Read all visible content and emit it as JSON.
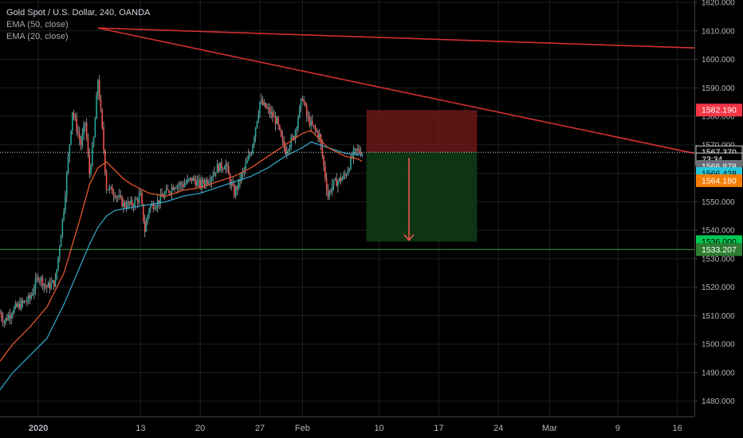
{
  "legend": {
    "symbol": "Gold Spot / U.S. Dollar, 240, OANDA",
    "ema50": "EMA (50, close)",
    "ema20": "EMA (20, close)"
  },
  "colors": {
    "background": "#000000",
    "grid": "#1c1f26",
    "up_candle": "#26a69a",
    "down_candle": "#ef5350",
    "ema20": "#e2552a",
    "ema50": "#2fa3c4",
    "trendline": "#d32f2f",
    "support_line": "#2e7d32",
    "stop_zone": "#7a1b1b",
    "target_zone": "#0f3d16"
  },
  "chart_data": {
    "type": "candlestick",
    "symbol": "Gold Spot / U.S. Dollar",
    "timeframe": "240",
    "source": "OANDA",
    "y_axis": {
      "range": [
        1476,
        1620
      ],
      "ticks": [
        "1620.000",
        "1610.000",
        "1600.000",
        "1590.000",
        "1580.000",
        "1570.000",
        "1560.000",
        "1550.000",
        "1540.000",
        "1530.000",
        "1520.000",
        "1510.000",
        "1500.000",
        "1490.000",
        "1480.000"
      ]
    },
    "x_axis": {
      "ticks": [
        {
          "label": "2020",
          "t": 1,
          "bold": true
        },
        {
          "label": "13",
          "t": 13
        },
        {
          "label": "20",
          "t": 20
        },
        {
          "label": "27",
          "t": 27
        },
        {
          "label": "Feb",
          "t": 32
        },
        {
          "label": "10",
          "t": 41
        },
        {
          "label": "17",
          "t": 48
        },
        {
          "label": "24",
          "t": 55
        },
        {
          "label": "Mar",
          "t": 61
        },
        {
          "label": "9",
          "t": 69
        },
        {
          "label": "16",
          "t": 76
        }
      ],
      "visible_range_days": [
        -3.5,
        78
      ]
    },
    "price_path": [
      [
        -3.5,
        1511
      ],
      [
        -3,
        1508
      ],
      [
        -2,
        1512
      ],
      [
        -1,
        1514
      ],
      [
        0,
        1516
      ],
      [
        1,
        1524
      ],
      [
        2,
        1520
      ],
      [
        3,
        1522
      ],
      [
        4,
        1548
      ],
      [
        5,
        1582
      ],
      [
        6,
        1570
      ],
      [
        6.5,
        1578
      ],
      [
        7,
        1560
      ],
      [
        7.5,
        1572
      ],
      [
        8,
        1593
      ],
      [
        8.5,
        1575
      ],
      [
        9,
        1555
      ],
      [
        10,
        1553
      ],
      [
        11,
        1549
      ],
      [
        12,
        1549
      ],
      [
        13,
        1552
      ],
      [
        13.5,
        1540
      ],
      [
        14,
        1548
      ],
      [
        15,
        1550
      ],
      [
        16,
        1553
      ],
      [
        17,
        1556
      ],
      [
        18,
        1556
      ],
      [
        19,
        1558
      ],
      [
        20,
        1556
      ],
      [
        21,
        1558
      ],
      [
        22,
        1562
      ],
      [
        23,
        1563
      ],
      [
        23.5,
        1557
      ],
      [
        24,
        1553
      ],
      [
        25,
        1560
      ],
      [
        26,
        1568
      ],
      [
        27,
        1585
      ],
      [
        28,
        1582
      ],
      [
        29,
        1578
      ],
      [
        29.5,
        1572
      ],
      [
        30,
        1568
      ],
      [
        31,
        1573
      ],
      [
        32,
        1587
      ],
      [
        32.5,
        1580
      ],
      [
        33,
        1577
      ],
      [
        34,
        1573
      ],
      [
        35,
        1552
      ],
      [
        35.5,
        1556
      ],
      [
        36,
        1557
      ],
      [
        37,
        1559
      ],
      [
        38,
        1567
      ],
      [
        38.5,
        1568
      ],
      [
        39,
        1567.4
      ]
    ],
    "ema20": [
      [
        -3.5,
        1494
      ],
      [
        -2,
        1500
      ],
      [
        0,
        1506
      ],
      [
        2,
        1513
      ],
      [
        4,
        1525
      ],
      [
        6,
        1545
      ],
      [
        7,
        1556
      ],
      [
        8,
        1562
      ],
      [
        9,
        1564
      ],
      [
        10,
        1561
      ],
      [
        11,
        1558
      ],
      [
        12,
        1556
      ],
      [
        14,
        1553
      ],
      [
        16,
        1552
      ],
      [
        18,
        1554
      ],
      [
        20,
        1555
      ],
      [
        22,
        1557
      ],
      [
        24,
        1559
      ],
      [
        26,
        1562
      ],
      [
        28,
        1566
      ],
      [
        30,
        1570
      ],
      [
        32,
        1574
      ],
      [
        33,
        1575
      ],
      [
        35,
        1569
      ],
      [
        37,
        1566
      ],
      [
        38.5,
        1565
      ],
      [
        39,
        1564.2
      ]
    ],
    "ema50": [
      [
        -3.5,
        1484
      ],
      [
        -2,
        1490
      ],
      [
        0,
        1496
      ],
      [
        2,
        1502
      ],
      [
        4,
        1514
      ],
      [
        6,
        1528
      ],
      [
        7,
        1535
      ],
      [
        8,
        1541
      ],
      [
        9,
        1545
      ],
      [
        10,
        1547
      ],
      [
        12,
        1548
      ],
      [
        14,
        1549
      ],
      [
        16,
        1550
      ],
      [
        18,
        1552
      ],
      [
        20,
        1553
      ],
      [
        22,
        1555
      ],
      [
        24,
        1557
      ],
      [
        26,
        1559
      ],
      [
        28,
        1562
      ],
      [
        30,
        1566
      ],
      [
        32,
        1569
      ],
      [
        33,
        1571
      ],
      [
        35,
        1569
      ],
      [
        37,
        1567
      ],
      [
        38.5,
        1566.6
      ],
      [
        39,
        1566.4
      ]
    ],
    "trendlines": [
      {
        "from": [
          8,
          1611
        ],
        "to": [
          78,
          1604
        ]
      },
      {
        "from": [
          8,
          1611
        ],
        "to": [
          78,
          1567
        ]
      }
    ],
    "horizontal_lines": [
      {
        "price": 1536.0
      },
      {
        "price": 1533.207
      }
    ],
    "position": {
      "type": "short",
      "entry": 1567.37,
      "stop": 1582.19,
      "target": 1536.0,
      "start_t": 39.5,
      "end_t": 52.5,
      "arrow_t": 44.5
    },
    "last_price_time": 39,
    "price_labels": [
      {
        "value": "1582.190",
        "bg": "#f23645",
        "fg": "#ffffff",
        "price": 1582.19
      },
      {
        "value": "1567.370",
        "bg": "#000000",
        "fg": "#ffffff",
        "price": 1567.37,
        "border": "#ffffff"
      },
      {
        "value": "23:34",
        "bg": "#000000",
        "fg": "#ffffff",
        "price": 1564.9,
        "border": "#ffffff"
      },
      {
        "value": "1566.878",
        "bg": "#6b6e76",
        "fg": "#ffffff",
        "price": 1562.4
      },
      {
        "value": "1566.428",
        "bg": "#26c6da",
        "fg": "#000000",
        "price": 1559.9
      },
      {
        "value": "1564.180",
        "bg": "#f57c00",
        "fg": "#ffffff",
        "price": 1557.4
      },
      {
        "value": "1536.000",
        "bg": "#00c853",
        "fg": "#000000",
        "price": 1536.0
      },
      {
        "value": "1533.207",
        "bg": "#2e7d32",
        "fg": "#ffffff",
        "price": 1533.207
      }
    ]
  }
}
